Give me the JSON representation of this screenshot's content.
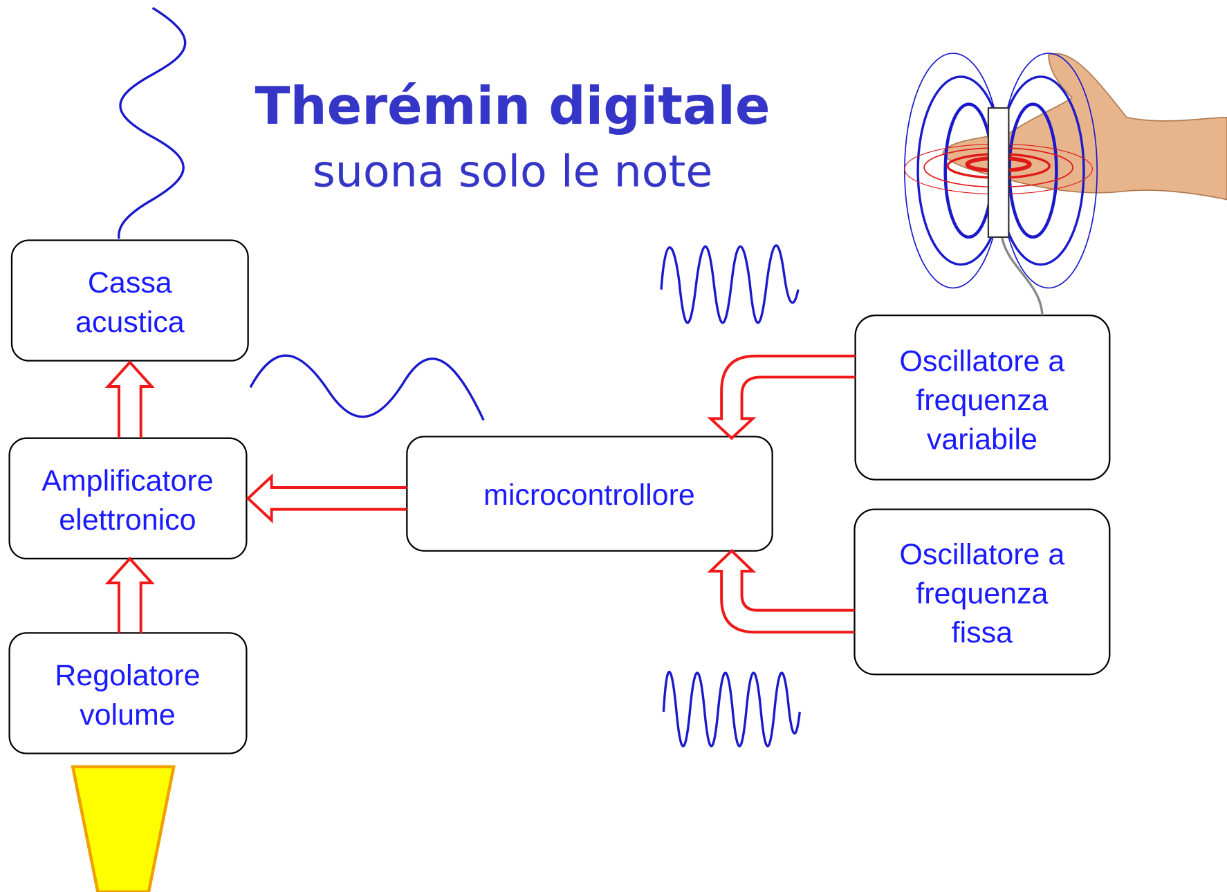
{
  "header": {
    "title": "Therémin digitale",
    "subtitle": "suona solo le note"
  },
  "nodes": [
    {
      "lines": [
        "Cassa",
        "acustica"
      ]
    },
    {
      "lines": [
        "Amplificatore",
        "elettronico"
      ]
    },
    {
      "lines": [
        "Regolatore",
        "volume"
      ]
    },
    {
      "lines": [
        "microcontrollore"
      ]
    },
    {
      "lines": [
        "Oscillatore a",
        "frequenza",
        "variabile"
      ]
    },
    {
      "lines": [
        "Oscillatore a",
        "frequenza",
        "fissa"
      ]
    }
  ]
}
